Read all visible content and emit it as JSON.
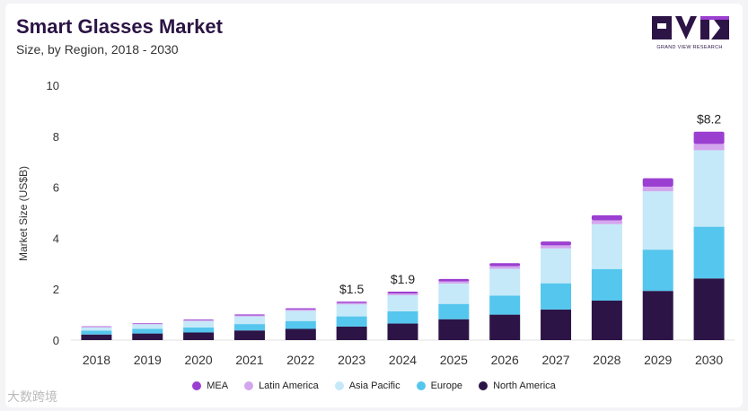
{
  "header": {
    "title": "Smart Glasses Market",
    "subtitle": "Size, by Region, 2018 - 2030",
    "logo_text": "GRAND VIEW RESEARCH"
  },
  "watermark": "大数跨境",
  "colors": {
    "MEA": "#9b3fd1",
    "Latin America": "#d4a6ee",
    "Asia Pacific": "#c5e9f8",
    "Europe": "#55c6ee",
    "North America": "#2d1446"
  },
  "chart_data": {
    "type": "bar",
    "stacked": true,
    "title": "Smart Glasses Market",
    "subtitle": "Size, by Region, 2018 - 2030",
    "xlabel": "",
    "ylabel": "Market Size (US$B)",
    "ylim": [
      0,
      10
    ],
    "yticks": [
      0,
      2,
      4,
      6,
      8,
      10
    ],
    "grid": false,
    "legend_position": "bottom",
    "categories": [
      "2018",
      "2019",
      "2020",
      "2021",
      "2022",
      "2023",
      "2024",
      "2025",
      "2026",
      "2027",
      "2028",
      "2029",
      "2030"
    ],
    "series": [
      {
        "name": "North America",
        "values": [
          0.22,
          0.26,
          0.3,
          0.38,
          0.44,
          0.53,
          0.65,
          0.82,
          1.0,
          1.2,
          1.55,
          1.93,
          2.42
        ]
      },
      {
        "name": "Europe",
        "values": [
          0.15,
          0.18,
          0.2,
          0.25,
          0.31,
          0.4,
          0.48,
          0.6,
          0.75,
          1.03,
          1.24,
          1.62,
          2.03
        ]
      },
      {
        "name": "Asia Pacific",
        "values": [
          0.13,
          0.18,
          0.25,
          0.3,
          0.4,
          0.47,
          0.63,
          0.8,
          1.05,
          1.37,
          1.76,
          2.29,
          3.0
        ]
      },
      {
        "name": "Latin America",
        "values": [
          0.02,
          0.03,
          0.03,
          0.04,
          0.05,
          0.06,
          0.07,
          0.08,
          0.1,
          0.12,
          0.15,
          0.18,
          0.25
        ]
      },
      {
        "name": "MEA",
        "values": [
          0.02,
          0.02,
          0.03,
          0.04,
          0.05,
          0.05,
          0.07,
          0.1,
          0.12,
          0.15,
          0.2,
          0.33,
          0.48
        ]
      }
    ],
    "annotations": [
      {
        "category": "2023",
        "label": "$1.5"
      },
      {
        "category": "2024",
        "label": "$1.9"
      },
      {
        "category": "2030",
        "label": "$8.2"
      }
    ],
    "legend_order": [
      "MEA",
      "Latin America",
      "Asia Pacific",
      "Europe",
      "North America"
    ]
  }
}
